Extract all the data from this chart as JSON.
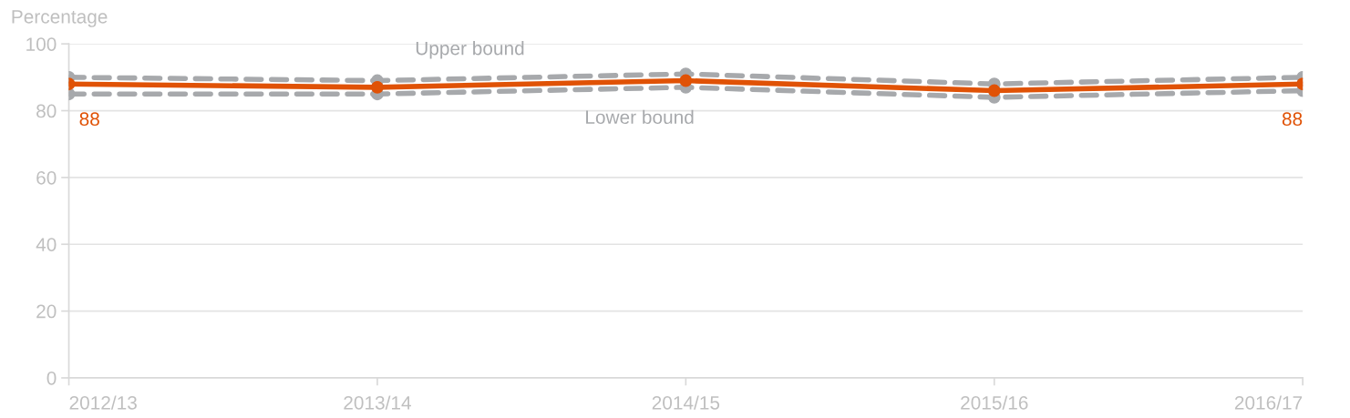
{
  "chart_data": {
    "type": "line",
    "ylabel": "Percentage",
    "categories": [
      "2012/13",
      "2013/14",
      "2014/15",
      "2015/16",
      "2016/17"
    ],
    "series": [
      {
        "name": "Upper bound",
        "color": "#a7a9ac",
        "values": [
          90,
          89,
          91,
          88,
          90
        ],
        "line_style": "dashed"
      },
      {
        "name": "Lower bound",
        "color": "#a7a9ac",
        "values": [
          85,
          85,
          87,
          84,
          86
        ],
        "line_style": "dashed"
      },
      {
        "color": "#e05206",
        "values": [
          88,
          87,
          89,
          86,
          88
        ],
        "line_style": "solid",
        "value_labels": [
          "88",
          null,
          null,
          null,
          "88"
        ]
      }
    ],
    "ylim": [
      0,
      100
    ],
    "yticks": [
      0,
      20,
      40,
      60,
      80,
      100
    ],
    "grid": "y",
    "marker": "circle",
    "legend": false
  }
}
